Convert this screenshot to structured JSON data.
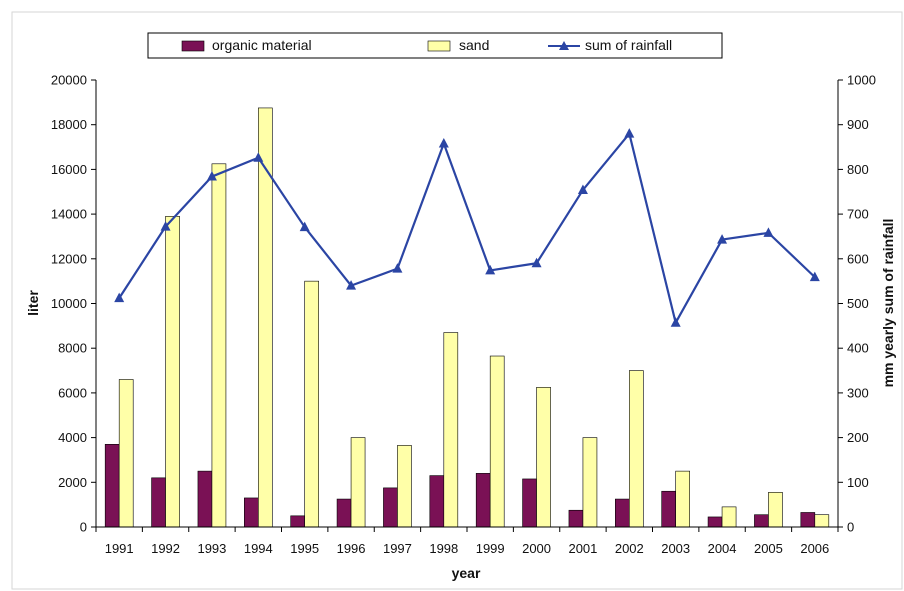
{
  "chart_data": {
    "type": "bar",
    "xlabel": "year",
    "ylabel": "liter",
    "ylabel_right": "mm yearly sum of rainfall",
    "ylim": [
      0,
      20000
    ],
    "ylim_right": [
      0,
      1000
    ],
    "grid": false,
    "legend_position": "top",
    "categories": [
      "1991",
      "1992",
      "1993",
      "1994",
      "1995",
      "1996",
      "1997",
      "1998",
      "1999",
      "2000",
      "2001",
      "2002",
      "2003",
      "2004",
      "2005",
      "2006"
    ],
    "yticks": [
      "0",
      "2000",
      "4000",
      "6000",
      "8000",
      "10000",
      "12000",
      "14000",
      "16000",
      "18000",
      "20000"
    ],
    "yticks_right": [
      "0",
      "100",
      "200",
      "300",
      "400",
      "500",
      "600",
      "700",
      "800",
      "900",
      "1000"
    ],
    "series": [
      {
        "name": "organic material",
        "type": "bar",
        "axis": "left",
        "color": "#7a1155",
        "values": [
          3700,
          2200,
          2500,
          1300,
          500,
          1250,
          1750,
          2300,
          2400,
          2150,
          750,
          1250,
          1600,
          450,
          550,
          650
        ]
      },
      {
        "name": "sand",
        "type": "bar",
        "axis": "left",
        "color": "#ffffa8",
        "values": [
          6600,
          13900,
          16250,
          18750,
          11000,
          4000,
          3650,
          8700,
          7650,
          6250,
          4000,
          7000,
          2500,
          900,
          1550,
          550
        ]
      },
      {
        "name": "sum of rainfall",
        "type": "line",
        "axis": "right",
        "color": "#2b45a4",
        "marker": "triangle",
        "values": [
          512,
          672,
          784,
          826,
          671,
          540,
          578,
          858,
          574,
          590,
          754,
          880,
          457,
          643,
          658,
          559
        ]
      }
    ]
  }
}
